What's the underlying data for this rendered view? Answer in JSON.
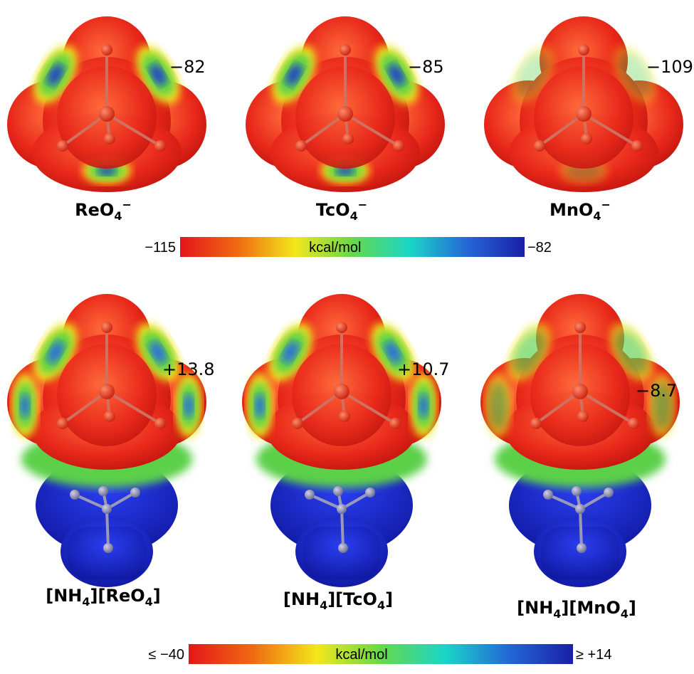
{
  "top": {
    "molecules": [
      {
        "label_parts": [
          {
            "text": "ReO",
            "pos": "base"
          },
          {
            "text": "4",
            "pos": "sub"
          },
          {
            "text": "−",
            "pos": "sup"
          }
        ],
        "value": "−82"
      },
      {
        "label_parts": [
          {
            "text": "TcO",
            "pos": "base"
          },
          {
            "text": "4",
            "pos": "sub"
          },
          {
            "text": "−",
            "pos": "sup"
          }
        ],
        "value": "−85"
      },
      {
        "label_parts": [
          {
            "text": "MnO",
            "pos": "base"
          },
          {
            "text": "4",
            "pos": "sub"
          },
          {
            "text": "−",
            "pos": "sup"
          }
        ],
        "value": "−109"
      }
    ],
    "colorbar": {
      "min_label": "−115",
      "unit": "kcal/mol",
      "max_label": "−82",
      "colors": [
        "#e4161a",
        "#f06a12",
        "#f3e71b",
        "#67d84a",
        "#1ad6c7",
        "#2467d6",
        "#1a1fa8"
      ]
    }
  },
  "bottom": {
    "molecules": [
      {
        "label_parts": [
          {
            "text": "[NH",
            "pos": "base"
          },
          {
            "text": "4",
            "pos": "sub"
          },
          {
            "text": "][ReO",
            "pos": "base"
          },
          {
            "text": "4",
            "pos": "sub"
          },
          {
            "text": "]",
            "pos": "base"
          }
        ],
        "value": "+13.8"
      },
      {
        "label_parts": [
          {
            "text": "[NH",
            "pos": "base"
          },
          {
            "text": "4",
            "pos": "sub"
          },
          {
            "text": "][TcO",
            "pos": "base"
          },
          {
            "text": "4",
            "pos": "sub"
          },
          {
            "text": "]",
            "pos": "base"
          }
        ],
        "value": "+10.7"
      },
      {
        "label_parts": [
          {
            "text": "[NH",
            "pos": "base"
          },
          {
            "text": "4",
            "pos": "sub"
          },
          {
            "text": "][MnO",
            "pos": "base"
          },
          {
            "text": "4",
            "pos": "sub"
          },
          {
            "text": "]",
            "pos": "base"
          }
        ],
        "value": "−8.7"
      }
    ],
    "colorbar": {
      "min_label": "≤ −40",
      "unit": "kcal/mol",
      "max_label": "≥ +14",
      "colors": [
        "#e4161a",
        "#f06a12",
        "#f3e71b",
        "#67d84a",
        "#1ad6c7",
        "#2467d6",
        "#1a1fa8"
      ]
    }
  }
}
